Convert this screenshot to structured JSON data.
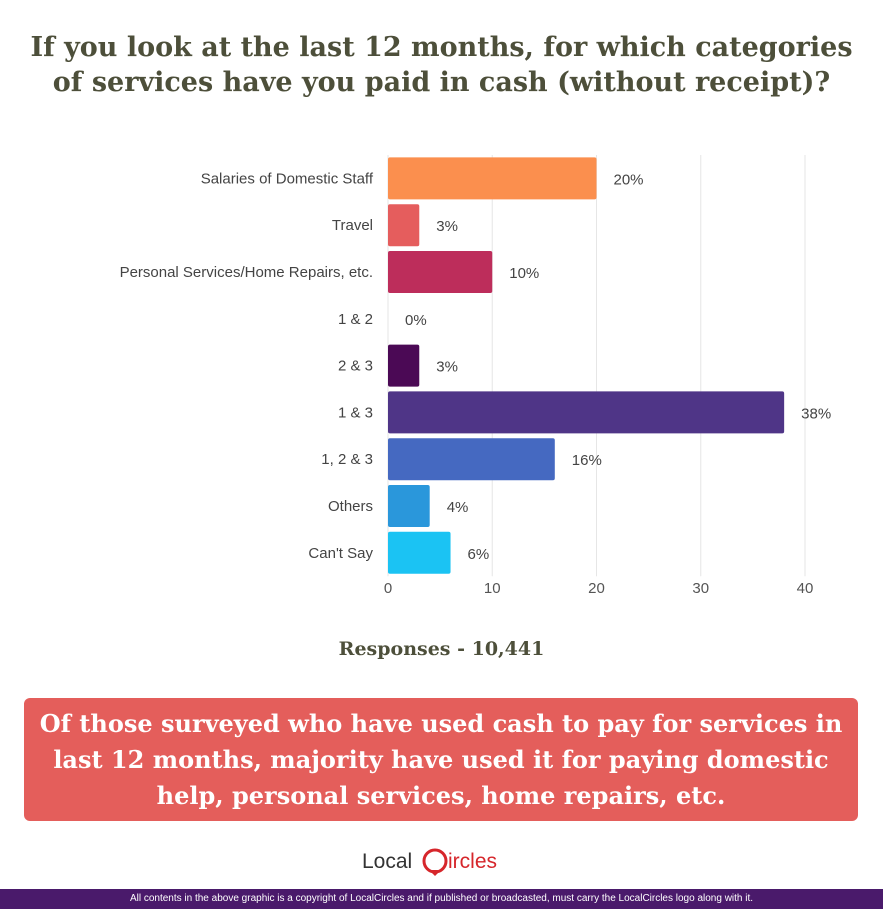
{
  "title_line1": "If you look at the last 12 months, for which categories",
  "title_line2": "of services have you paid in cash (without receipt)?",
  "responses": "Responses - 10,441",
  "callout": "Of those surveyed who have used cash to pay for services in last 12 months, majority have used it for paying domestic help, personal services, home repairs, etc.",
  "logo": {
    "part1": "Local",
    "part2": "ircles"
  },
  "footer": "All contents in the above graphic is a copyright of LocalCircles and if published or broadcasted, must carry the LocalCircles logo along with it.",
  "colors": {
    "title": "#4d4f3a",
    "callout_bg": "#e45e5b",
    "footer_bg": "#4a1a6b",
    "logo_red": "#d6262b"
  },
  "chart_data": {
    "type": "bar",
    "orientation": "horizontal",
    "categories": [
      "Salaries of Domestic Staff",
      "Travel",
      "Personal Services/Home Repairs, etc.",
      "1 & 2",
      "2 & 3",
      "1 & 3",
      "1, 2 & 3",
      "Others",
      "Can't Say"
    ],
    "values": [
      20,
      3,
      10,
      0,
      3,
      38,
      16,
      4,
      6
    ],
    "value_labels": [
      "20%",
      "3%",
      "10%",
      "0%",
      "3%",
      "38%",
      "16%",
      "4%",
      "6%"
    ],
    "bar_colors": [
      "#fb8f4e",
      "#e55d5d",
      "#bd2d5b",
      "#c7337c",
      "#4b0955",
      "#4f3587",
      "#4569c1",
      "#2a97db",
      "#1bc3f3"
    ],
    "xlim": [
      0,
      40
    ],
    "xticks": [
      0,
      10,
      20,
      30,
      40
    ],
    "grid": true
  }
}
